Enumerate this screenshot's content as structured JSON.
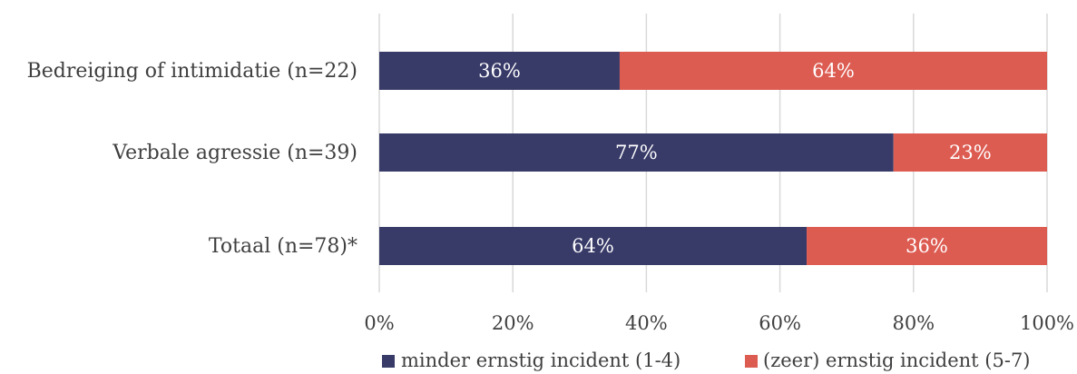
{
  "chart_data": {
    "type": "bar",
    "orientation": "horizontal",
    "stacked": true,
    "categories": [
      "Bedreiging of intimidatie (n=22)",
      "Verbale agressie (n=39)",
      "Totaal (n=78)*"
    ],
    "series": [
      {
        "name": "minder ernstig incident (1-4)",
        "color": "#383a68",
        "values": [
          36,
          77,
          64
        ]
      },
      {
        "name": "(zeer) ernstig incident (5-7)",
        "color": "#dd5c52",
        "values": [
          64,
          23,
          36
        ]
      }
    ],
    "data_labels": [
      [
        "36%",
        "77%",
        "64%"
      ],
      [
        "64%",
        "23%",
        "36%"
      ]
    ],
    "xticks": [
      "0%",
      "20%",
      "40%",
      "60%",
      "80%",
      "100%"
    ],
    "xlim": [
      0,
      100
    ],
    "grid": "vertical",
    "legend": "bottom",
    "title": "",
    "xlabel": "",
    "ylabel": ""
  }
}
